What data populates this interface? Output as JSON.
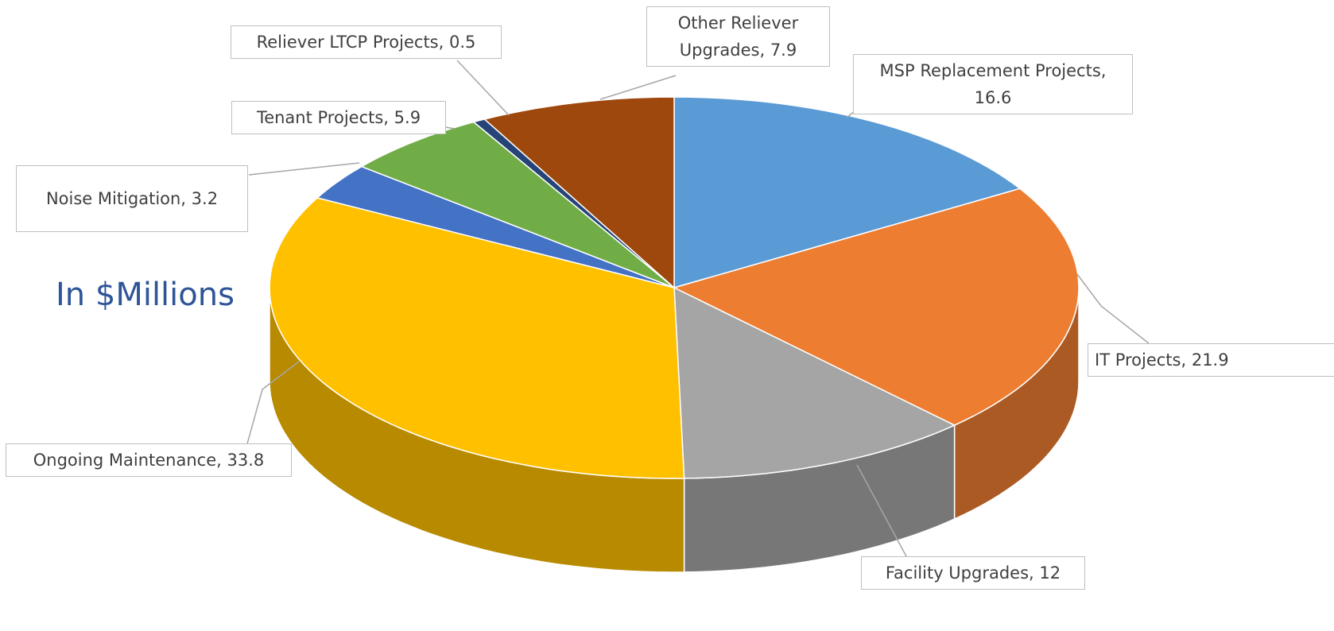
{
  "chart_data": {
    "type": "pie",
    "title": "In $Millions",
    "values": [
      16.6,
      21.9,
      12,
      33.8,
      3.2,
      5.9,
      0.5,
      7.9
    ],
    "value_labels": [
      "MSP Replacement Projects, 16.6",
      "IT Projects, 21.9",
      "Facility Upgrades, 12",
      "Ongoing Maintenance, 33.8",
      "Noise Mitigation, 3.2",
      "Tenant Projects, 5.9",
      "Reliever LTCP Projects, 0.5",
      "Other Reliever Upgrades, 7.9"
    ],
    "colors": [
      "#5b9bd5",
      "#ed7d31",
      "#a5a5a5",
      "#ffc000",
      "#4472c4",
      "#70ad47",
      "#264478",
      "#9e480e"
    ]
  }
}
